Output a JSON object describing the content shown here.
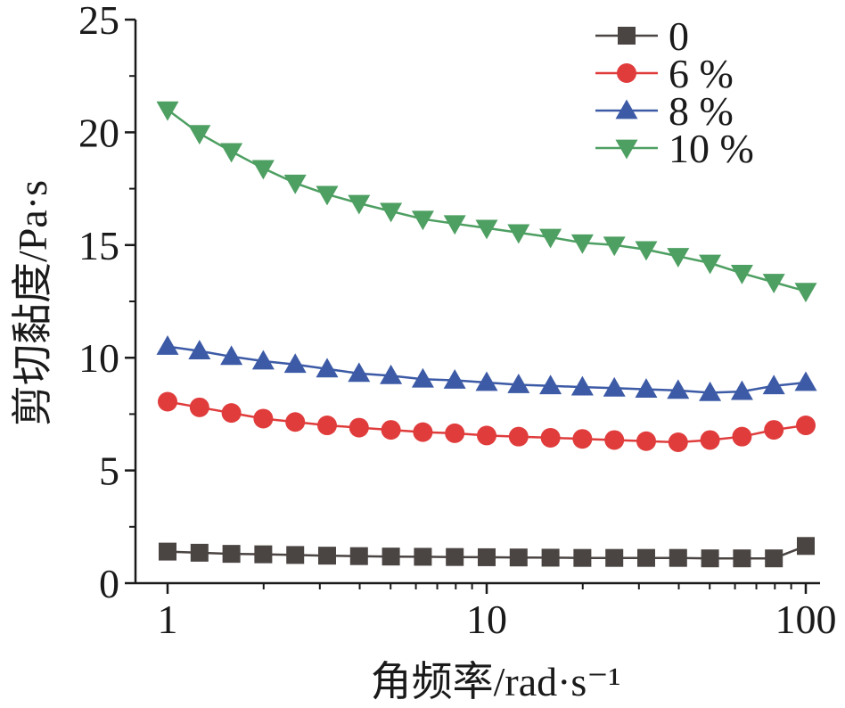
{
  "chart_data": {
    "type": "line",
    "xscale": "log",
    "xlabel": "角频率/rad·s⁻¹",
    "ylabel": "剪切黏度/Pa·s",
    "xlim": [
      1,
      100
    ],
    "ylim": [
      0,
      25
    ],
    "xticks": [
      "1",
      "10",
      "100"
    ],
    "yticks": [
      "0",
      "5",
      "10",
      "15",
      "20",
      "25"
    ],
    "grid": false,
    "legend_position": "top-right",
    "x": [
      1,
      1.259,
      1.585,
      1.995,
      2.512,
      3.162,
      3.981,
      5.012,
      6.31,
      7.943,
      10,
      12.59,
      15.85,
      19.95,
      25.12,
      31.62,
      39.81,
      50.12,
      63.1,
      79.43,
      100
    ],
    "series": [
      {
        "name": "0",
        "color": "#4a4442",
        "marker": "square",
        "values": [
          1.4,
          1.35,
          1.3,
          1.28,
          1.25,
          1.22,
          1.2,
          1.18,
          1.17,
          1.16,
          1.15,
          1.14,
          1.13,
          1.12,
          1.12,
          1.12,
          1.12,
          1.1,
          1.1,
          1.1,
          1.65
        ]
      },
      {
        "name": "6 %",
        "color": "#e03c3c",
        "marker": "circle",
        "values": [
          8.05,
          7.8,
          7.55,
          7.3,
          7.15,
          7.0,
          6.9,
          6.8,
          6.7,
          6.65,
          6.55,
          6.5,
          6.45,
          6.4,
          6.35,
          6.3,
          6.25,
          6.35,
          6.5,
          6.8,
          7.0
        ]
      },
      {
        "name": "8 %",
        "color": "#3c5aa6",
        "marker": "triangle-up",
        "values": [
          10.5,
          10.3,
          10.05,
          9.85,
          9.7,
          9.5,
          9.3,
          9.2,
          9.05,
          9.0,
          8.9,
          8.8,
          8.75,
          8.7,
          8.65,
          8.6,
          8.55,
          8.45,
          8.5,
          8.75,
          8.9
        ]
      },
      {
        "name": "10 %",
        "color": "#4e9f62",
        "marker": "triangle-down",
        "values": [
          21.0,
          19.95,
          19.15,
          18.4,
          17.75,
          17.25,
          16.85,
          16.5,
          16.15,
          15.95,
          15.75,
          15.55,
          15.35,
          15.1,
          15.0,
          14.8,
          14.5,
          14.2,
          13.75,
          13.35,
          12.95
        ]
      }
    ]
  }
}
